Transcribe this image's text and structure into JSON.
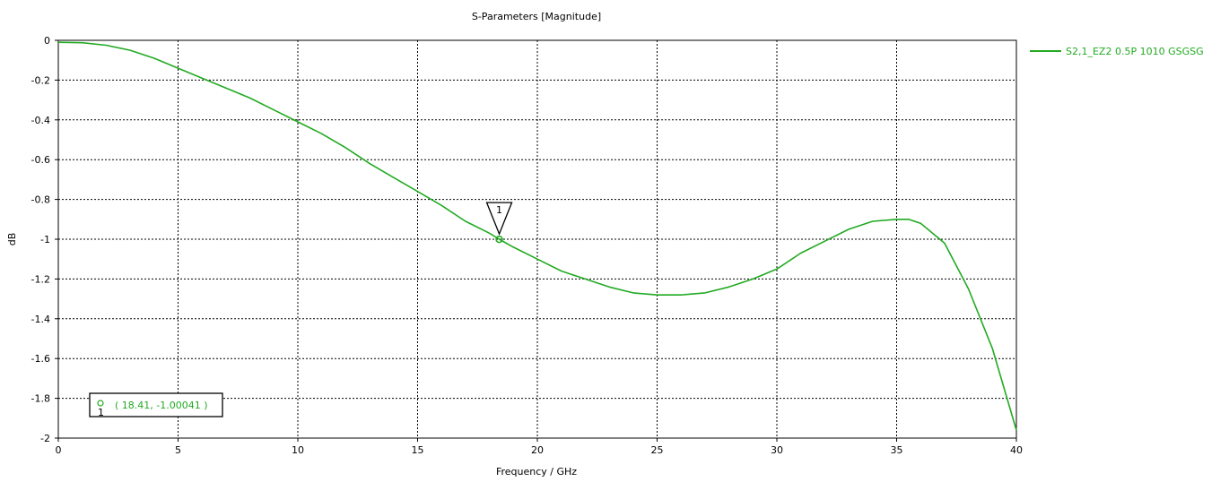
{
  "chart_data": {
    "type": "line",
    "title": "S-Parameters [Magnitude]",
    "xlabel": "Frequency / GHz",
    "ylabel": "dB",
    "xlim": [
      0,
      40
    ],
    "ylim": [
      -2,
      0
    ],
    "xticks": [
      0,
      5,
      10,
      15,
      20,
      25,
      30,
      35,
      40
    ],
    "yticks": [
      0,
      -0.2,
      -0.4,
      -0.6,
      -0.8,
      -1,
      -1.2,
      -1.4,
      -1.6,
      -1.8,
      -2
    ],
    "grid": true,
    "legend_position": "top-right",
    "series": [
      {
        "name": "S2,1_EZ2 0.5P 1010 GSGSG",
        "color": "#22aa22",
        "points": [
          [
            0,
            -0.01
          ],
          [
            1,
            -0.012
          ],
          [
            2,
            -0.025
          ],
          [
            3,
            -0.05
          ],
          [
            4,
            -0.09
          ],
          [
            5,
            -0.14
          ],
          [
            6,
            -0.19
          ],
          [
            7,
            -0.24
          ],
          [
            8,
            -0.29
          ],
          [
            9,
            -0.35
          ],
          [
            10,
            -0.41
          ],
          [
            11,
            -0.47
          ],
          [
            12,
            -0.54
          ],
          [
            13,
            -0.62
          ],
          [
            14,
            -0.69
          ],
          [
            15,
            -0.76
          ],
          [
            16,
            -0.83
          ],
          [
            17,
            -0.91
          ],
          [
            18,
            -0.97
          ],
          [
            18.41,
            -1.0
          ],
          [
            19,
            -1.04
          ],
          [
            20,
            -1.1
          ],
          [
            21,
            -1.16
          ],
          [
            22,
            -1.2
          ],
          [
            23,
            -1.24
          ],
          [
            24,
            -1.27
          ],
          [
            25,
            -1.28
          ],
          [
            26,
            -1.28
          ],
          [
            27,
            -1.27
          ],
          [
            28,
            -1.24
          ],
          [
            29,
            -1.2
          ],
          [
            30,
            -1.15
          ],
          [
            31,
            -1.07
          ],
          [
            32,
            -1.01
          ],
          [
            33,
            -0.95
          ],
          [
            34,
            -0.91
          ],
          [
            35,
            -0.9
          ],
          [
            35.5,
            -0.9
          ],
          [
            36,
            -0.92
          ],
          [
            37,
            -1.02
          ],
          [
            38,
            -1.25
          ],
          [
            39,
            -1.55
          ],
          [
            40,
            -1.96
          ]
        ]
      }
    ],
    "marker": {
      "id": "1",
      "x": 18.41,
      "y": -1.00041,
      "readout": "( 18.41, -1.00041 )"
    }
  }
}
